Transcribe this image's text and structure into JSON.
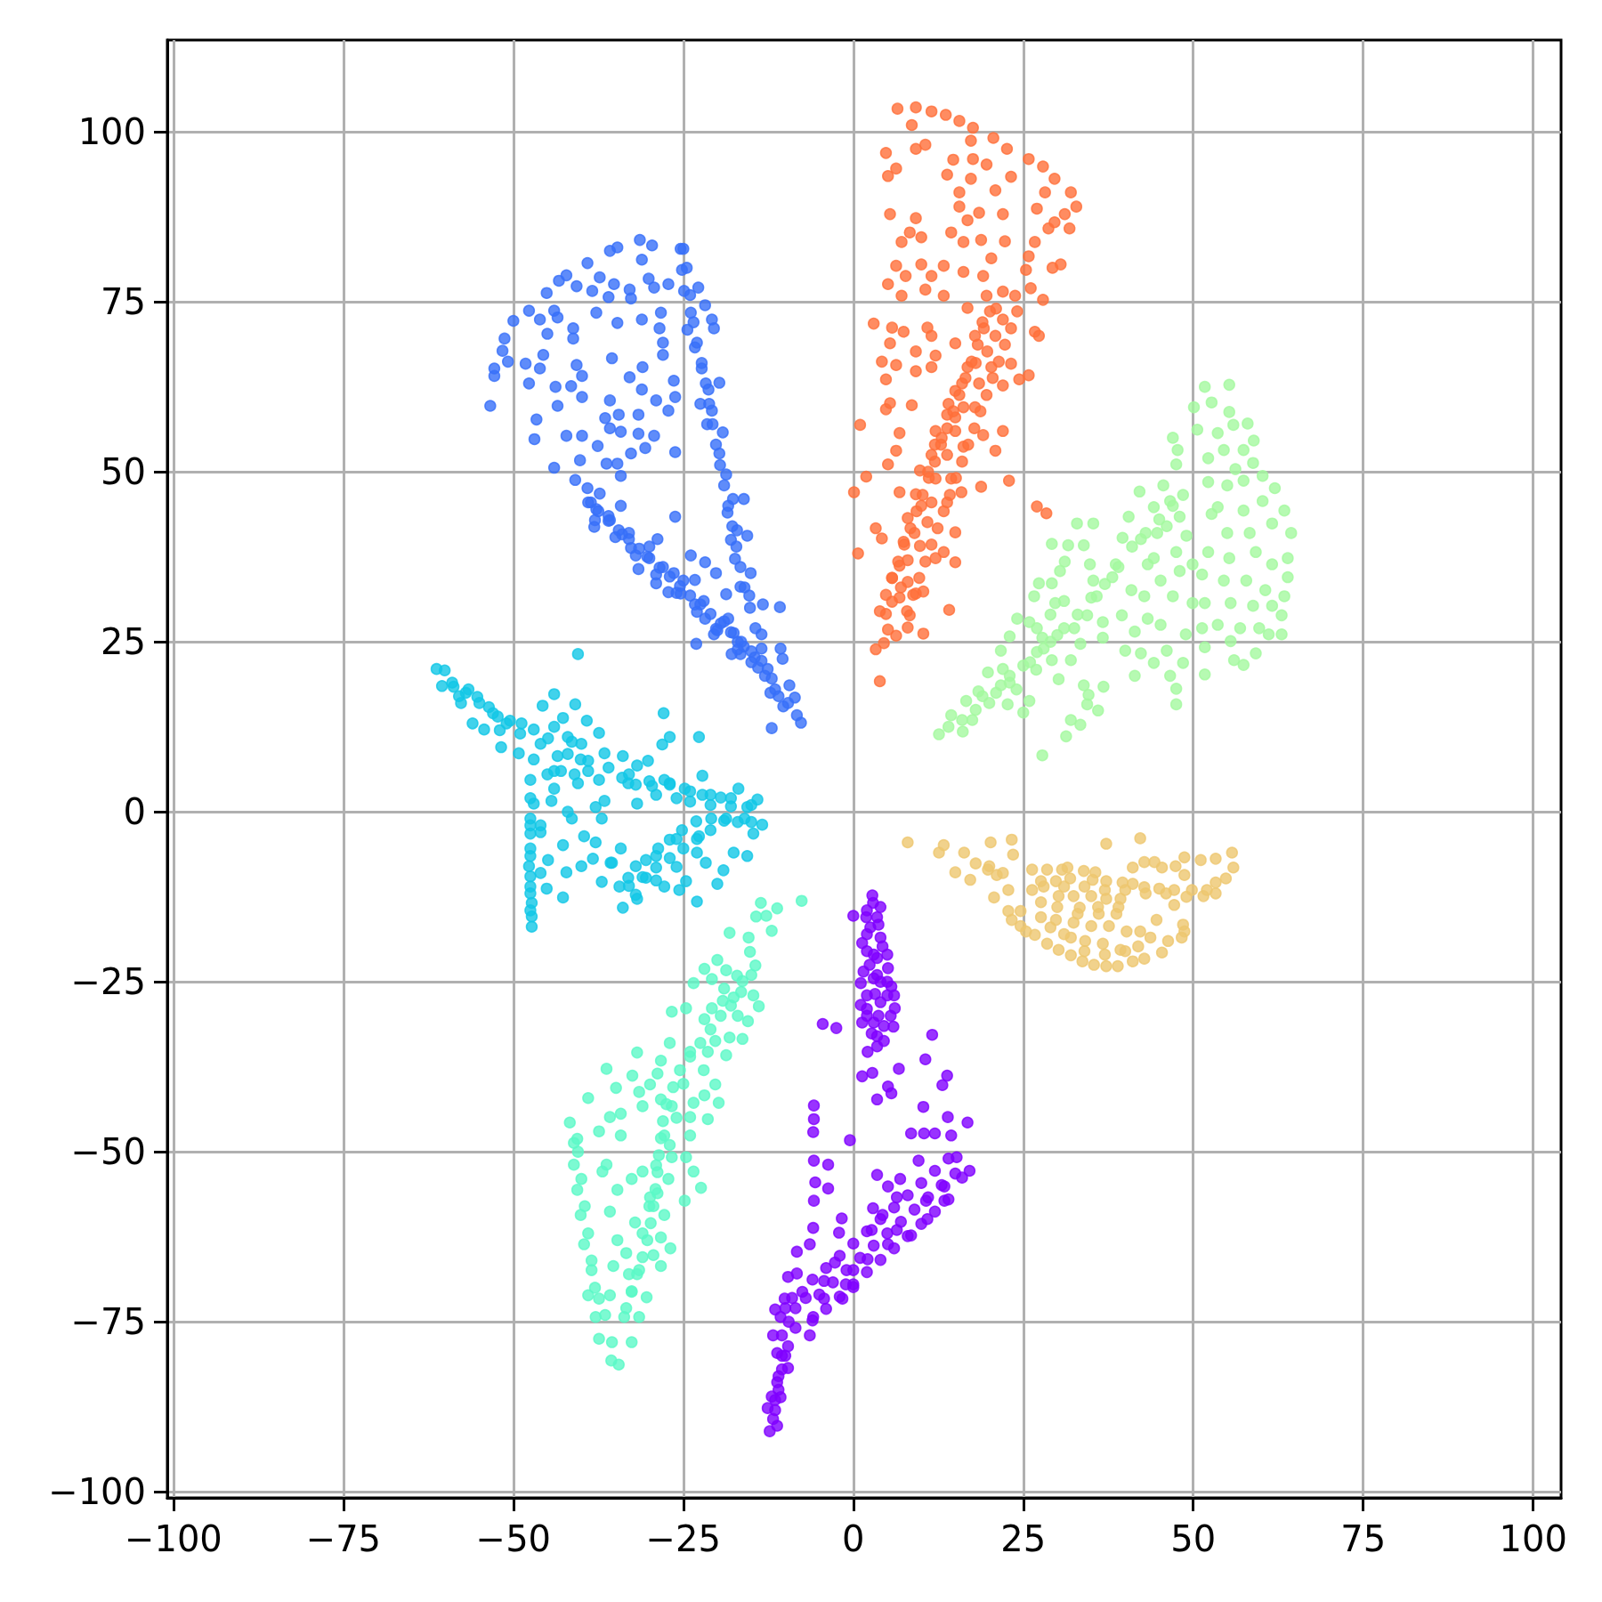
{
  "chart_data": {
    "type": "scatter",
    "xlim": [
      -100.9,
      104.1
    ],
    "ylim": [
      -100.9,
      113.5
    ],
    "xticks": [
      {
        "value": -100,
        "label": "−100"
      },
      {
        "value": -75,
        "label": "−75"
      },
      {
        "value": -50,
        "label": "−50"
      },
      {
        "value": -25,
        "label": "−25"
      },
      0,
      25,
      50,
      75,
      100
    ],
    "yticks": [
      {
        "value": -100,
        "label": "−100"
      },
      {
        "value": -75,
        "label": "−75"
      },
      {
        "value": -50,
        "label": "−50"
      },
      {
        "value": -25,
        "label": "−25"
      },
      0,
      25,
      50,
      75,
      100
    ],
    "grid": true,
    "marker": "circle",
    "series": [
      {
        "color": "#8000ff",
        "x": [
          2.8,
          0,
          2.9,
          1.9,
          3.7,
          1.3,
          4.3,
          2.4,
          5.1,
          1.1,
          5.6,
          3.2,
          1.1,
          6.1,
          3.7,
          1.3,
          5.9,
          2.7,
          4.5,
          3.5,
          2.1,
          2,
          4,
          3,
          4,
          2,
          5,
          3.5,
          -4.5,
          -2.5,
          1.3,
          2.8,
          6.7,
          10.6,
          11.6,
          13.8,
          13.1,
          5.1,
          5.6,
          3.5,
          10.3,
          -0.5,
          -5.8,
          -5.8,
          -5.9,
          -5.8,
          -5.6,
          -5.8,
          -5.9,
          -3.7,
          -3.7,
          -1.7,
          -2.1,
          -6.4,
          -8.3,
          13.9,
          16.8,
          8.5,
          10.4,
          12,
          14.4,
          15.2,
          17.1,
          16,
          9.6,
          13.4,
          13.4,
          10.7,
          10.9,
          8.5,
          3.5,
          5.1,
          6.9,
          6.4,
          2.9,
          4.3,
          2.7,
          6.4,
          5.1,
          2.1,
          0,
          -1.1,
          -2.7,
          0,
          -1.6,
          -4.3,
          -4.3,
          -5.9,
          -6.4,
          -8.3,
          -9.6,
          -10.1,
          -10.7,
          -7.5,
          -8.5,
          -9.6,
          -11.2,
          -9.6,
          -11.2,
          -10.7,
          -12.6,
          -11.8,
          -12.3,
          -11.2,
          -11.8,
          -11.5,
          -7,
          -5,
          -3,
          -1,
          1,
          3,
          5,
          7,
          9,
          11,
          13,
          15,
          -10,
          -10.5,
          -11,
          -12,
          -11.5,
          -6,
          -4,
          -2,
          0,
          2,
          4,
          6,
          8,
          10,
          12,
          14,
          -6,
          -4,
          -2,
          0,
          2,
          4,
          6,
          8,
          10,
          12,
          14,
          2,
          3.5,
          2.5,
          4,
          2,
          3.5,
          5,
          1.5,
          3,
          5,
          2,
          4,
          6,
          2,
          3,
          4.5,
          5.5,
          3.5,
          -11.5,
          -11,
          -10.5,
          -10.5,
          -9.5,
          -10,
          -9,
          -8.5
        ],
        "values": [
          -12.3,
          -15.3,
          -13.4,
          -15.5,
          -16.6,
          -19.3,
          -19.8,
          -22.5,
          -23,
          -25.2,
          -25.7,
          -26.8,
          -28.4,
          -28.9,
          -30,
          -31,
          -31.6,
          -32.6,
          -33.7,
          -34.5,
          -35.3,
          -18,
          -14,
          -21,
          -25,
          -29,
          -27,
          -24,
          -31.2,
          -31.8,
          -38.9,
          -38.4,
          -37.8,
          -36.4,
          -32.8,
          -38.8,
          -40.2,
          -40.4,
          -41.4,
          -42.3,
          -43.4,
          -48.3,
          -43.2,
          -45.2,
          -47.1,
          -51.3,
          -54.5,
          -57.2,
          -61.2,
          -51.9,
          -55.4,
          -59.8,
          -61.9,
          -63.6,
          -64.7,
          -44.9,
          -45.7,
          -47.3,
          -47.3,
          -47.3,
          -47.6,
          -50.8,
          -52.8,
          -53.8,
          -51.3,
          -55.1,
          -57.2,
          -57.2,
          -59.9,
          -62.3,
          -53.4,
          -55.1,
          -54,
          -56.7,
          -58.3,
          -59.3,
          -61.5,
          -61.5,
          -63.6,
          -65.8,
          -67.4,
          -69.5,
          -66.3,
          -69.9,
          -71.6,
          -71.6,
          -69,
          -74.3,
          -77,
          -67.9,
          -68.4,
          -71.6,
          -74.3,
          -70.6,
          -75.9,
          -78.6,
          -79.6,
          -81.8,
          -83.9,
          -86.1,
          -87.7,
          -89.3,
          -91.1,
          -90.3,
          -77,
          -73.2,
          -71.5,
          -71,
          -69.2,
          -67.4,
          -65.6,
          -63.8,
          -62,
          -60.3,
          -58.5,
          -56.7,
          -54.9,
          -53.2,
          -80,
          -82,
          -85,
          -86,
          -88,
          -68.8,
          -67.1,
          -65.3,
          -63.5,
          -61.7,
          -59.9,
          -58.2,
          -56.4,
          -54.6,
          -52.8,
          -51,
          -74.8,
          -73.1,
          -71.3,
          -69.5,
          -67.7,
          -65.9,
          -64.2,
          -62.4,
          -60.6,
          -58.8,
          -57,
          -14.5,
          -15.5,
          -17,
          -18.5,
          -20.5,
          -21.5,
          -21,
          -23.5,
          -24.5,
          -25,
          -27,
          -28,
          -27,
          -30,
          -31,
          -31.5,
          -30,
          -33,
          -86.5,
          -83,
          -80,
          -77,
          -75,
          -73,
          -71.5,
          -73
        ]
      },
      {
        "color": "#376ff9",
        "x": [
          -53.4,
          -52.8,
          -52.8,
          -51.6,
          -51.3,
          -50,
          -50.8,
          -47.7,
          -46.1,
          -45.1,
          -43.3,
          -42.2,
          -40.7,
          -39.1,
          -38.4,
          -37.3,
          -35.8,
          -34.7,
          -35.2,
          -36,
          -32.9,
          -32.7,
          -31.4,
          -31.1,
          -29.6,
          -30.1,
          -29.3,
          -27.2,
          -28.3,
          -25.4,
          -44,
          -43.5,
          -45,
          -41.2,
          -41.2,
          -37.8,
          -34.7,
          -31.1,
          -28.5,
          -28,
          -28,
          -48.2,
          -45.6,
          -46.1,
          -40.7,
          -39.9,
          -35.5,
          -31,
          -32.9,
          -47.7,
          -43.8,
          -41.5,
          -43.5,
          -39.9,
          -46.6,
          -46.9,
          -42.2,
          -39.9,
          -44,
          -40.2,
          -35.8,
          -36.5,
          -34.5,
          -35.8,
          -34.2,
          -31.1,
          -31.6,
          -29,
          -27.2,
          -26.2,
          -26.4,
          -29.3,
          -31.6,
          -30.6,
          -32.7,
          -34.7,
          -36.3,
          -37.6,
          -26.2,
          -34.2,
          -25,
          -25.2,
          -24.9,
          -22.8,
          -23.9,
          -21.8,
          -20.8,
          -20.5,
          -24.4,
          -23.3,
          -22.3,
          -21.3,
          -19.7,
          -20.8,
          -19.2,
          -19.7,
          -18.7,
          -17.7,
          -16.1,
          -17.1,
          -15.6,
          -17.4,
          -15.1,
          -16.6,
          -15.3,
          -13.3,
          -10.8,
          -13.5,
          -10.7,
          -10.4,
          -12,
          -9.4,
          -8.6,
          -9.6,
          -8.3,
          -7.7,
          -12,
          -12.2,
          -40.9,
          -39.1,
          -38.6,
          -37.3,
          -37.8,
          -38.1,
          -35.8,
          -34.2,
          -34,
          -32.7,
          -31.6,
          -30.3,
          -28.8,
          -29,
          -27.2,
          -26.4,
          -26.2,
          -25.4,
          -23.9,
          -21.8,
          -23.3,
          -23.3,
          -21.8,
          -20.2,
          -20.2,
          -18.7,
          -18.4,
          -17.6,
          -20.5,
          -23.1,
          -17.9,
          -16.6,
          -16.1,
          -14.5,
          -36,
          -33,
          -30,
          -28,
          -25,
          -22,
          -19,
          -17,
          -15,
          -13,
          -11,
          -22.5,
          -21.5,
          -18.5,
          -18,
          -24.5,
          -24,
          -23.5,
          -23,
          -22.3,
          -21.7,
          -21.2,
          -20.7,
          -20.2,
          -19.6,
          -19,
          -18.4,
          -17.8,
          -17.2,
          -16.6,
          -16,
          -15.2,
          -14.4,
          -13.5,
          -12.6,
          -11.5,
          -10.3,
          -39,
          -37.5,
          -36,
          -34.5,
          -33,
          -31.5,
          -30,
          -28.5,
          -27,
          -25.5,
          -24,
          -22.5,
          -21,
          -19.5,
          -18,
          -16.5,
          -15,
          -13.5,
          -38,
          -35,
          -32,
          -29,
          -26,
          -23,
          -20,
          -17,
          -14
        ],
        "values": [
          59.7,
          64.1,
          65.2,
          67.8,
          69.6,
          72.2,
          66.2,
          73.7,
          72.4,
          76.3,
          78.1,
          78.9,
          77.3,
          80.7,
          76.6,
          78.6,
          82.5,
          83,
          77.6,
          75.7,
          76.8,
          75.5,
          84.1,
          81.2,
          83.3,
          78.4,
          77.1,
          77.6,
          73.4,
          82.8,
          73.7,
          72.7,
          70.3,
          71.1,
          69.6,
          73.4,
          71.9,
          72.4,
          71.1,
          69,
          67.2,
          65.9,
          67.2,
          65.2,
          65.7,
          64.1,
          66.7,
          65.4,
          63.9,
          63,
          62.5,
          62.6,
          59.7,
          61,
          57.7,
          54.8,
          55.3,
          55.3,
          50.6,
          51.7,
          60.5,
          57.9,
          58.4,
          56.4,
          55.9,
          62.1,
          58.4,
          60.5,
          59,
          61,
          63.4,
          55.3,
          55.6,
          53.5,
          52.7,
          51.2,
          51.2,
          53.8,
          52.9,
          49.4,
          82.8,
          79.7,
          76.6,
          77.1,
          73.4,
          74.5,
          72.4,
          71.1,
          70.9,
          68.3,
          65.2,
          62.1,
          63.1,
          59,
          55.8,
          52.7,
          49.6,
          46,
          46,
          41.4,
          40.6,
          37.2,
          35.1,
          33.1,
          31.8,
          30.5,
          30.1,
          26.1,
          24,
          22.5,
          19.6,
          18.6,
          16.8,
          16,
          14.2,
          13.1,
          12.3,
          17.5,
          48.8,
          47.6,
          45.5,
          46.8,
          44.5,
          41.9,
          42.9,
          45,
          40.8,
          38.8,
          35.7,
          37.5,
          40.1,
          33.6,
          32.3,
          35.1,
          43.4,
          32.1,
          37.7,
          36.7,
          34.1,
          30.5,
          28.4,
          26.9,
          35.1,
          32,
          28.4,
          26.3,
          26.1,
          24.7,
          23.2,
          23.2,
          24.3,
          22.7,
          43.5,
          41,
          39,
          36,
          34,
          31,
          28,
          25,
          22,
          20,
          17,
          60,
          57,
          44,
          40,
          80,
          76,
          72,
          69,
          66,
          63,
          60,
          57,
          54,
          51,
          48,
          45,
          42,
          39,
          36,
          33,
          30,
          27,
          24,
          21,
          18,
          15.5,
          45.5,
          44.2,
          42.8,
          41.4,
          40.1,
          38.7,
          37.3,
          35.9,
          34.6,
          33.2,
          31.8,
          30.5,
          29.1,
          27.7,
          26.4,
          25,
          23.6,
          22.2,
          42.9,
          40.4,
          37.7,
          34.9,
          32.2,
          29.4,
          26.7,
          23.9,
          21.2
        ]
      },
      {
        "color": "#12c7e6",
        "x": [
          -61.3,
          -60.1,
          -60.5,
          -58.8,
          -56.6,
          -55.3,
          -57.7,
          -53.6,
          -52.3,
          -56,
          -54.3,
          -51.8,
          -50.5,
          -48.8,
          -49.2,
          -44,
          -45.7,
          -40.9,
          -47,
          -42.7,
          -39.2,
          -37.4,
          -44.9,
          -41.4,
          -47,
          -43.5,
          -40.1,
          -36.6,
          -47.5,
          -44,
          -40.5,
          -37.4,
          -47,
          -44.4,
          -36.6,
          -37.9,
          -47.5,
          -47.5,
          -47.5,
          -47.7,
          -47.5,
          -47.3,
          -47.3,
          -47.3,
          -45.1,
          -44.9,
          -42.7,
          -42.2,
          -42.7,
          -40,
          -38.3,
          -41.4,
          -39.6,
          -37.9,
          -37,
          -37,
          -35.7,
          -33.9,
          -31.8,
          -30.2,
          -33.1,
          -29.6,
          -31.8,
          -27.8,
          -27,
          -24.8,
          -22.2,
          -19.5,
          -16.9,
          -14.1,
          -15.6,
          -22.2,
          -27.9,
          -27,
          -28.1,
          -22.7,
          -40.5,
          -34.4,
          -33.9,
          -33.1,
          -30.5,
          -28.7,
          -27,
          -25.2,
          -23.1,
          -20.9,
          -18.7,
          -22.7,
          -30.5,
          -31.8,
          -27.8,
          -25.6,
          -23,
          -24.6,
          -21.7,
          -20,
          -19.1,
          -17.6,
          -15.6,
          -14.7,
          -13.4,
          -16,
          -34.2,
          -35.5,
          -34,
          -32,
          -29,
          -26,
          -24,
          -21,
          -18,
          -44,
          -42,
          -46,
          -32,
          -29,
          -26,
          -42,
          -39,
          -36,
          -33,
          -30,
          -27,
          -24,
          -21,
          -18,
          -15,
          -33,
          -31,
          -29,
          -27,
          -25,
          -23,
          -21,
          -19,
          -17,
          -15,
          -32,
          -29,
          -26,
          -23,
          -47.5,
          -47.5,
          -47.5,
          -47.5,
          -47.5,
          -47.5,
          -46,
          -46,
          -59,
          -57,
          -55,
          -53,
          -51,
          -49,
          -58,
          -52,
          -46,
          -44,
          -42,
          -40,
          -45,
          -43,
          -41,
          -39
        ],
        "values": [
          21,
          20.8,
          18.5,
          18.4,
          18,
          16.9,
          16,
          15.4,
          14,
          13,
          12.1,
          9.5,
          13.4,
          13,
          8.6,
          17.3,
          15.6,
          15.8,
          12.1,
          13.8,
          13.4,
          11.6,
          10.8,
          10.3,
          7.7,
          8.2,
          7.7,
          8.6,
          4.7,
          3.4,
          4.2,
          4.7,
          1.2,
          1.6,
          1.6,
          0.7,
          -1,
          -3.2,
          -5.4,
          -8,
          -11,
          -13.4,
          -15.4,
          -16.9,
          -11.3,
          -7.1,
          -4.9,
          -8.9,
          -12.6,
          -8,
          -6.9,
          -1,
          -3.6,
          -4.5,
          -1,
          -10.3,
          -7.5,
          8.2,
          6.8,
          7.5,
          4.2,
          3.8,
          1.2,
          4.7,
          4.2,
          3.4,
          2.5,
          2.1,
          3.4,
          1.8,
          0.7,
          5.3,
          14.5,
          11,
          9.9,
          11,
          23.2,
          -11,
          -14.1,
          -9.7,
          -7.1,
          -5.4,
          -4.1,
          -2.7,
          -1.4,
          -1,
          -1,
          -3.6,
          -9.7,
          -12.8,
          -11,
          -11.5,
          -13.2,
          -10.2,
          -7.5,
          -10.6,
          -8.6,
          -6,
          -6.5,
          -3.2,
          -1.9,
          -1,
          -5.4,
          -7.5,
          5,
          4,
          2.5,
          2,
          1.5,
          1,
          0.8,
          6,
          0,
          -2,
          -8,
          -6.5,
          -4,
          8.5,
          7.5,
          6.5,
          5.5,
          4.5,
          4,
          3,
          2.5,
          2,
          1,
          -10.9,
          -9.6,
          -8.2,
          -6.8,
          -5.4,
          -4,
          -2.7,
          -1.3,
          -1.5,
          -1.5,
          -12.2,
          -10.1,
          -8.1,
          -6,
          2,
          -2,
          -6.5,
          -9.5,
          -12,
          -14.5,
          -3,
          -9,
          19,
          17.5,
          16,
          14.5,
          13,
          11.5,
          17,
          12,
          10,
          12.5,
          11,
          10,
          5.5,
          6,
          5.5,
          6
        ]
      },
      {
        "color": "#5bf9c7",
        "x": [
          -13.6,
          -11.2,
          -7.6,
          -14.3,
          -12.8,
          -12,
          -18.2,
          -15.4,
          -15.2,
          -14.4,
          -20,
          -21.9,
          -18.7,
          -17.1,
          -16.3,
          -20.8,
          -23.5,
          -14.7,
          -13.9,
          -17.6,
          -19.2,
          -20.8,
          -21.9,
          -24.6,
          -26.7,
          -15.5,
          -16.3,
          -18.2,
          -20.3,
          -18.7,
          -21.4,
          -24,
          -27,
          -28.3,
          -31.8,
          -36.3,
          -32.5,
          -34.9,
          -39,
          -28.8,
          -29.9,
          -31.5,
          -20.3,
          -21.9,
          -19.8,
          -23.5,
          -21.4,
          -24,
          -26.7,
          -28.3,
          -31,
          -34.2,
          -35.8,
          -41.7,
          -40.6,
          -37.4,
          -34.2,
          -27.8,
          -24,
          -24.6,
          -23.5,
          -22.4,
          -24.8,
          -26.7,
          -27.2,
          -28.8,
          -27.8,
          -28.3,
          -29.4,
          -31.5,
          -32.6,
          -33.7,
          -32.6,
          -34.5,
          -35.6,
          -37.4,
          -37.9,
          -39,
          -38.5,
          -39.6,
          -40.1,
          -40.6,
          -41.1,
          -41.1,
          -36.3,
          -36.9,
          -34.7,
          -32.6,
          -31,
          -29.9,
          -35.8,
          -32.1,
          -34.7,
          -33.4,
          -35.3,
          -30.4,
          -31.5,
          -35.8,
          -37.4,
          -26.9,
          -28.3,
          -25,
          -26,
          -27,
          -29,
          -30,
          -31,
          -33,
          -22,
          -17,
          -19,
          -15,
          -16.5,
          -18,
          -19.5,
          -21,
          -22.5,
          -24,
          -25.5,
          -26.5,
          -27.5,
          -28,
          -28.3,
          -28.6,
          -28.8,
          -29.1,
          -29.4,
          -29.8,
          -30.3,
          -31,
          -31.8,
          -32.6,
          -33.4,
          -40.5,
          -40,
          -39.5,
          -39,
          -38.5,
          -38,
          -36.5,
          -35.5
        ],
        "values": [
          -13.4,
          -14.2,
          -13.1,
          -15.4,
          -15.3,
          -17.5,
          -17.8,
          -18.5,
          -20.6,
          -22.6,
          -21.8,
          -23.1,
          -23.3,
          -24.1,
          -24.9,
          -24.6,
          -25.2,
          -27,
          -28.6,
          -27.3,
          -27.8,
          -28.9,
          -30.5,
          -28.9,
          -29.4,
          -30.8,
          -33.4,
          -33.2,
          -33.7,
          -35.8,
          -35.3,
          -35.3,
          -34,
          -36.6,
          -35.4,
          -37.8,
          -38.8,
          -40.6,
          -42.1,
          -38.5,
          -40.1,
          -41.2,
          -40.1,
          -41.7,
          -42.8,
          -42.8,
          -45.2,
          -44.9,
          -43.3,
          -42.3,
          -43.3,
          -44.4,
          -44.9,
          -45.7,
          -48.1,
          -47,
          -47.6,
          -47.6,
          -47.6,
          -50.8,
          -52.9,
          -55.3,
          -57.2,
          -50.8,
          -54,
          -56.1,
          -59.3,
          -62.6,
          -65.2,
          -67.4,
          -70.6,
          -74.3,
          -78,
          -81.3,
          -80.7,
          -77.5,
          -74.3,
          -71.1,
          -67.4,
          -63.6,
          -59.3,
          -55.6,
          -51.9,
          -48.7,
          -51.9,
          -52.9,
          -55.6,
          -54,
          -52.9,
          -56.7,
          -58.8,
          -60.4,
          -63,
          -64.9,
          -66.8,
          -71.4,
          -74.3,
          -71.1,
          -71.6,
          -64.2,
          -66.8,
          -40,
          -45,
          -49,
          -52,
          -58,
          -62,
          -68,
          -38,
          -30,
          -26,
          -24,
          -26.5,
          -28.5,
          -30,
          -32,
          -34,
          -36,
          -38,
          -40.5,
          -43,
          -45.5,
          -48,
          -50.5,
          -53,
          -55.5,
          -58,
          -60.5,
          -63,
          -65.5,
          -68,
          -70.5,
          -73,
          -50,
          -54,
          -58,
          -62,
          -66,
          -70,
          -74,
          -78
        ]
      },
      {
        "color": "#a4f99f",
        "x": [
          12.6,
          14.4,
          16.1,
          17.5,
          18.4,
          19.8,
          16.6,
          21.7,
          22.7,
          21.7,
          24.1,
          23,
          25,
          25.9,
          26.6,
          27.3,
          25.9,
          29.2,
          31.6,
          31.1,
          30.4,
          29.2,
          29.7,
          27.8,
          26.9,
          29.2,
          30.2,
          32,
          33.4,
          32.5,
          32.9,
          35.3,
          33.9,
          34.8,
          35.3,
          35.8,
          34.4,
          36.7,
          36.7,
          33.9,
          34.6,
          36.8,
          36,
          34.4,
          32,
          33.4,
          31.3,
          27.8,
          38.6,
          39.6,
          40.5,
          38.1,
          40.9,
          39.5,
          41.4,
          40,
          41.4,
          42.3,
          44.2,
          43.3,
          42.8,
          43.3,
          42.3,
          42.1,
          44.2,
          44.7,
          44.2,
          45.2,
          45.6,
          46.6,
          46.1,
          47.5,
          48,
          47,
          45.2,
          46.1,
          46.6,
          47.5,
          47.5,
          48.5,
          48.9,
          49.9,
          48.5,
          48,
          49,
          49.9,
          47,
          47.7,
          47.5,
          50.1,
          50.6,
          51.7,
          52.7,
          55.3,
          55.3,
          53.6,
          55.9,
          58,
          58.9,
          57.4,
          54.5,
          52.2,
          56.2,
          58.8,
          52.2,
          55,
          57.4,
          60.2,
          62,
          63.4,
          64.4,
          63.9,
          63.9,
          63.4,
          63,
          63,
          60.2,
          57.4,
          53.6,
          52.7,
          55,
          58.3,
          61.6,
          52.2,
          55.3,
          59.2,
          61.6,
          51.3,
          54.5,
          57.8,
          60.6,
          51.7,
          55.5,
          58.8,
          61.6,
          51.3,
          53.6,
          56.9,
          59.7,
          61.1,
          51.7,
          55.5,
          56,
          57.4,
          59.2,
          51.7,
          20,
          23,
          26,
          28,
          30,
          24,
          22,
          27,
          29,
          31,
          14,
          16,
          18,
          19,
          21,
          23,
          25,
          27,
          29,
          31,
          33,
          35,
          37,
          39,
          41,
          43,
          45,
          47
        ],
        "values": [
          11.4,
          14.2,
          11.8,
          13.5,
          17.7,
          20.5,
          16.3,
          18.6,
          15.8,
          23.7,
          28.4,
          25.8,
          14.6,
          16.3,
          31.7,
          33.6,
          27.9,
          39.4,
          39.2,
          36.8,
          35.4,
          33.6,
          30.7,
          25.6,
          20.9,
          22.3,
          19.5,
          22.3,
          24.7,
          27,
          42.4,
          42.4,
          39.2,
          36.4,
          34,
          31.7,
          28.9,
          27.9,
          25.6,
          18.6,
          17.2,
          18.4,
          14.9,
          15.8,
          13.5,
          12.8,
          11.1,
          8.3,
          36.4,
          40.3,
          43.4,
          34.5,
          32.6,
          28.9,
          26.5,
          23.7,
          20,
          23.3,
          21.9,
          28.4,
          31.7,
          36.4,
          40.1,
          47.1,
          44.8,
          41,
          37.3,
          34,
          48,
          45.7,
          42,
          38.2,
          35.4,
          31.7,
          27.5,
          23.7,
          20,
          18.1,
          15.8,
          21.9,
          26.1,
          30.7,
          46.6,
          43.4,
          40.6,
          36.4,
          55,
          53.2,
          51.1,
          59.5,
          56.2,
          62.5,
          60.2,
          62.8,
          58.8,
          55.7,
          56.9,
          57.1,
          54.6,
          53.2,
          53.2,
          52,
          50.4,
          51.3,
          48.5,
          48,
          48.7,
          49.4,
          47.6,
          44.3,
          41,
          37.3,
          34.5,
          31.7,
          28.9,
          26.1,
          45.7,
          44.3,
          44.8,
          43.8,
          41,
          41,
          42.4,
          38.2,
          37.3,
          38.2,
          36.4,
          34.9,
          34,
          34,
          32.6,
          30.7,
          30.7,
          30.3,
          30.3,
          27,
          27.5,
          27,
          27,
          26.1,
          24.2,
          25.1,
          22.3,
          21.6,
          23.3,
          20.2,
          16,
          19,
          22,
          24,
          26,
          18,
          21,
          27,
          29,
          31,
          12.5,
          13.5,
          15,
          17,
          17.5,
          20,
          21.5,
          23.5,
          25,
          27,
          29,
          31.5,
          33.5,
          36,
          39,
          41,
          43,
          45
        ]
      },
      {
        "color": "#edc76f",
        "x": [
          8,
          13.3,
          12.6,
          15,
          16.3,
          20.2,
          23.3,
          23.5,
          18,
          19.8,
          21.1,
          17.2,
          20.7,
          22.8,
          22.8,
          23.3,
          24.6,
          26.3,
          28.5,
          30.7,
          31.5,
          33.9,
          35.6,
          37.2,
          42.2,
          41.1,
          42.8,
          44.3,
          45.4,
          47.4,
          48.7,
          48.7,
          51.1,
          53.3,
          55.7,
          55.9,
          54.8,
          53.3,
          53.3,
          51.5,
          49.8,
          47.2,
          45,
          42.8,
          41.1,
          39.6,
          37.2,
          35.2,
          31.9,
          29.8,
          27.6,
          26.3,
          27.6,
          30.2,
          32.4,
          35,
          37.2,
          39.3,
          47.2,
          44.6,
          48.5,
          48.7,
          48.3,
          46.3,
          45.4,
          43.7,
          42.2,
          42.8,
          41.1,
          38.9,
          37.2,
          35.4,
          33.7,
          32,
          30.2,
          28.5,
          26.7,
          25.4,
          29.8,
          32.4,
          35,
          37.6,
          40.2,
          34.1,
          36.7,
          39.3,
          41.9,
          32,
          36.1,
          38.7,
          33.3,
          27.6,
          24.6,
          28,
          31,
          34,
          37,
          40,
          43,
          46,
          49,
          52,
          30,
          33,
          36,
          39,
          31,
          34,
          37,
          40,
          29,
          20,
          22
        ],
        "values": [
          -4.5,
          -4.9,
          -6,
          -8.9,
          -6,
          -4.5,
          -4.1,
          -6.3,
          -7.6,
          -8.5,
          -9.3,
          -10,
          -12.6,
          -11.5,
          -14.6,
          -15.9,
          -16.8,
          -8.5,
          -8.5,
          -8.5,
          -8.2,
          -8.7,
          -8.9,
          -4.7,
          -3.9,
          -8.2,
          -7.4,
          -7.4,
          -8.2,
          -8,
          -6.7,
          -9.3,
          -7.1,
          -6.9,
          -6,
          -8.2,
          -9.8,
          -10.4,
          -12,
          -12.4,
          -11.5,
          -11.5,
          -11.3,
          -11.1,
          -10.6,
          -10.4,
          -10.2,
          -10,
          -9.8,
          -10.2,
          -10.2,
          -11.5,
          -13.3,
          -12.4,
          -12.4,
          -12.4,
          -12.8,
          -12.8,
          -13.7,
          -15.9,
          -16.6,
          -17.6,
          -18.5,
          -19,
          -20.7,
          -18.5,
          -17.6,
          -21.6,
          -22,
          -22.7,
          -22.7,
          -22.5,
          -22,
          -21.1,
          -20.3,
          -19.4,
          -18.1,
          -17.6,
          -15.9,
          -16.3,
          -16.8,
          -16.8,
          -17.6,
          -19,
          -19.4,
          -20.3,
          -19.8,
          -18.5,
          -15,
          -15,
          -14.1,
          -15.5,
          -14.6,
          -11,
          -11,
          -11,
          -11.5,
          -11.5,
          -12,
          -12,
          -12.5,
          -11.5,
          -14,
          -15,
          -14,
          -14,
          -18,
          -20.5,
          -21,
          -20.5,
          -17,
          -8,
          -9
        ]
      },
      {
        "color": "#ff6f39",
        "x": [
          6.5,
          9.2,
          11.5,
          13.6,
          15.6,
          17.6,
          20.6,
          22.6,
          25.8,
          27.9,
          29.6,
          32,
          32.8,
          31.1,
          29.6,
          28.7,
          26.7,
          25.8,
          25.4,
          29.3,
          30.5,
          31.8,
          27,
          28.2,
          8.6,
          9.2,
          10.6,
          4.8,
          6.3,
          5.1,
          13.8,
          14.7,
          17.3,
          17.6,
          19.6,
          23.2,
          20.9,
          17.3,
          15.6,
          15.6,
          18.5,
          22,
          16.8,
          5.4,
          9.2,
          8.3,
          7.1,
          10,
          14.4,
          16.2,
          18.8,
          22.3,
          20.3,
          6.3,
          7.7,
          10,
          11.5,
          13.3,
          16.2,
          19.1,
          5.1,
          7.1,
          10.6,
          13.3,
          16.8,
          19.6,
          22,
          26.1,
          27.9,
          3,
          5.7,
          7.4,
          5.4,
          10.9,
          11.5,
          9.2,
          12.1,
          15,
          4.2,
          6.3,
          4.8,
          9.2,
          11.5,
          26.7,
          27.3,
          25.8,
          24.4,
          22,
          23.2,
          23.8,
          22,
          20.9,
          19.7,
          17.9,
          16.8,
          18.5,
          20.3,
          15,
          16.2,
          17.9,
          13.8,
          12.1,
          15,
          11.5,
          13.8,
          16.2,
          9.8,
          12.1,
          14.4,
          9.2,
          11.5,
          13.8,
          8,
          10.9,
          7.4,
          9.8,
          12.1,
          6.8,
          5.7,
          8,
          5.7,
          9.2,
          6.8,
          4.8,
          6.3,
          8,
          10.3,
          5.1,
          3.3,
          4.5,
          3.9,
          1,
          1.9,
          0.1,
          0.7,
          5.1,
          6.3,
          6.8,
          4.8,
          5.4,
          8.6,
          3.3,
          4.2,
          6.8,
          15,
          18.8,
          22.9,
          15.9,
          22,
          20.9,
          19.1,
          13.3,
          15,
          14.1,
          10.3,
          27,
          28.4,
          8.3,
          21,
          19,
          18,
          16,
          14,
          13,
          11,
          10,
          9,
          8,
          7,
          15,
          12,
          20.1,
          19.2,
          18.3,
          17.4,
          16.5,
          15.6,
          14.7,
          13.8,
          12.9,
          12,
          11.1,
          10.2,
          9.3,
          8.4,
          7.5,
          6.6,
          5.7,
          4.8,
          3.9,
          24.1,
          23.2,
          22.3,
          21.4,
          20.5,
          19.6,
          18.7,
          17.8,
          16.9,
          16,
          15.1,
          14.2,
          13.3,
          12.4,
          11.5,
          10.6,
          9.7,
          8.8,
          7.9
        ],
        "values": [
          103.4,
          103.6,
          103,
          102.5,
          101.6,
          100.6,
          99.1,
          97.5,
          96,
          94.9,
          93.1,
          91.1,
          89,
          87.9,
          86.7,
          85.8,
          83.8,
          81.7,
          79.7,
          80,
          80.5,
          85.8,
          88.7,
          91.1,
          101,
          97.5,
          98.1,
          96.9,
          94.6,
          93.5,
          93.7,
          95.9,
          98.7,
          96,
          95.2,
          93.4,
          91.4,
          93.1,
          91.1,
          89,
          88.1,
          87.9,
          87,
          87.9,
          87.3,
          85.2,
          83.8,
          84.5,
          85.2,
          83.8,
          84.1,
          83.9,
          81.4,
          80.3,
          78.8,
          80.5,
          78.8,
          80.3,
          79.4,
          78.8,
          77.6,
          75.9,
          76.8,
          75.9,
          74.1,
          75.9,
          76.5,
          77,
          75.3,
          71.8,
          71.2,
          70.6,
          68.9,
          71.2,
          70,
          67.7,
          67.1,
          68.9,
          66.2,
          65.7,
          63.6,
          64.8,
          65.4,
          70.6,
          70,
          64.2,
          63.6,
          62.7,
          65.9,
          75.9,
          72.4,
          70,
          67.7,
          70,
          65.4,
          63,
          65.4,
          61.9,
          59.5,
          59.5,
          58.4,
          56,
          56,
          52.5,
          52.5,
          53.7,
          50.2,
          49,
          49,
          46.7,
          45.5,
          45.5,
          43.2,
          42.6,
          39.7,
          39.1,
          37.3,
          36.2,
          34.4,
          33.8,
          30.9,
          32.1,
          31.5,
          29.1,
          25.9,
          27.1,
          26.2,
          26.8,
          23.9,
          24.8,
          19.2,
          56.9,
          49.3,
          47,
          38,
          51.1,
          53.1,
          55.7,
          59.2,
          60.1,
          59.8,
          41.7,
          40.2,
          47,
          41.1,
          47.8,
          48.7,
          47,
          56,
          53.1,
          55.4,
          38.2,
          36.7,
          29.7,
          32.4,
          44.9,
          43.9,
          28.9,
          74,
          72,
          66,
          63,
          60,
          55,
          50,
          45,
          41,
          37,
          33,
          58,
          54,
          73.6,
          71.1,
          68.7,
          66.2,
          63.8,
          61.3,
          58.9,
          56.4,
          54,
          51.5,
          49.1,
          46.6,
          44.2,
          41.7,
          39.3,
          36.8,
          34.4,
          31.9,
          29.5,
          73.6,
          71.1,
          68.7,
          66.2,
          63.8,
          61.3,
          58.9,
          56.4,
          54,
          51.5,
          49.1,
          46.6,
          44.2,
          41.7,
          39.3,
          36.8,
          34.4,
          31.9,
          29.5
        ]
      }
    ]
  }
}
